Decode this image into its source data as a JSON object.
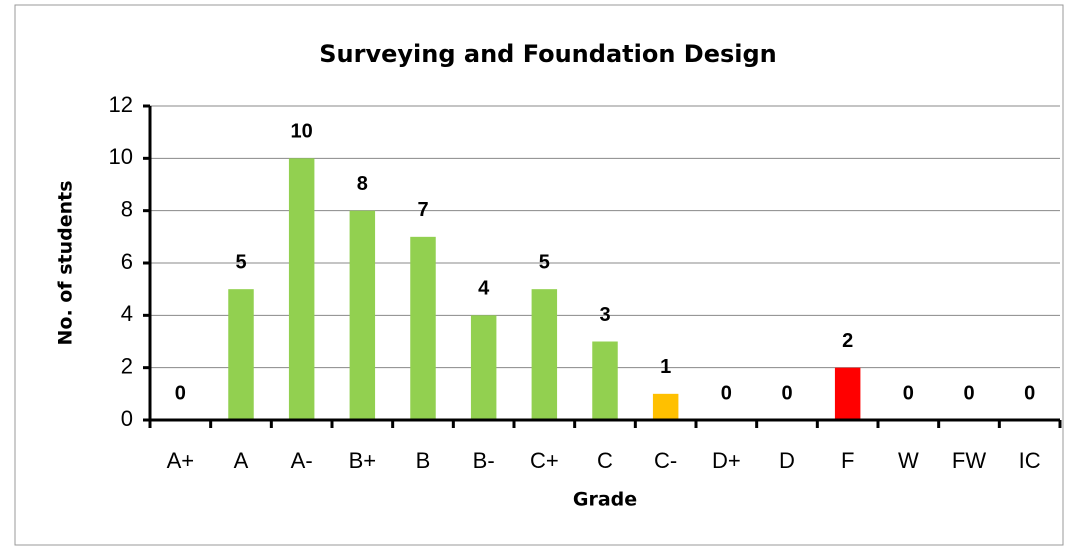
{
  "chart_data": {
    "type": "bar",
    "title": "Surveying and Foundation Design",
    "x_label": "Grade",
    "y_label": "No. of students",
    "categories": [
      "A+",
      "A",
      "A-",
      "B+",
      "B",
      "B-",
      "C+",
      "C",
      "C-",
      "D+",
      "D",
      "F",
      "W",
      "FW",
      "IC"
    ],
    "values": [
      0,
      5,
      10,
      8,
      7,
      4,
      5,
      3,
      1,
      0,
      0,
      2,
      0,
      0,
      0
    ],
    "colors": [
      "#92d050",
      "#92d050",
      "#92d050",
      "#92d050",
      "#92d050",
      "#92d050",
      "#92d050",
      "#92d050",
      "#ffc000",
      "#92d050",
      "#92d050",
      "#ff0000",
      "#92d050",
      "#92d050",
      "#92d050"
    ],
    "ylim": [
      0,
      12
    ],
    "yticks": [
      0,
      2,
      4,
      6,
      8,
      10,
      12
    ],
    "grid": true
  }
}
